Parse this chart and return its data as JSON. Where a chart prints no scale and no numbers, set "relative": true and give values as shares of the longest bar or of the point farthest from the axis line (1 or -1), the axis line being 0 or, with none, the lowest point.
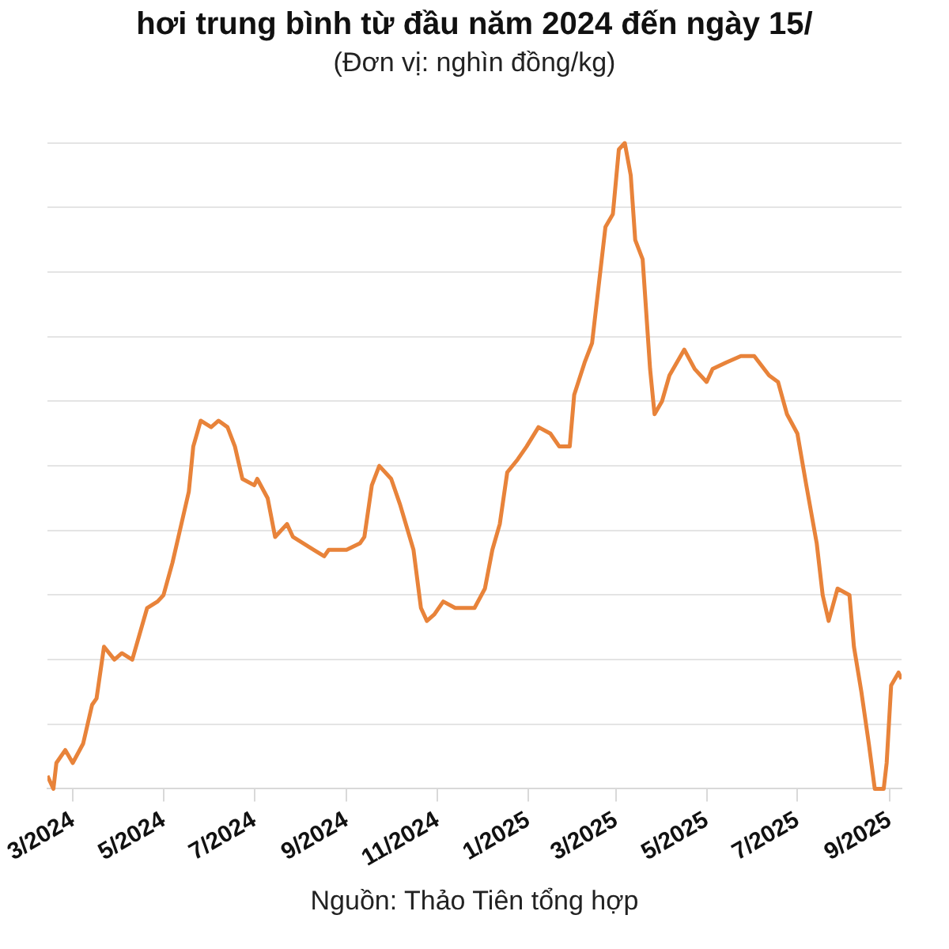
{
  "chart_data": {
    "type": "line",
    "title": "hơi trung bình từ đầu năm 2024 đến ngày 15/",
    "subtitle": "(Đơn vị: nghìn đồng/kg)",
    "annotations": [
      "Nguồn: Thảo Tiên tổng hợp"
    ],
    "relative": true,
    "grid": "y",
    "marker": "none",
    "xlim": [
      "2024-02-13",
      "2025-09-09"
    ],
    "xticks": [
      {
        "value": "2024-03",
        "label": "3/2024"
      },
      {
        "value": "2024-05",
        "label": "5/2024"
      },
      {
        "value": "2024-07",
        "label": "7/2024"
      },
      {
        "value": "2024-09",
        "label": "9/2024"
      },
      {
        "value": "2024-11",
        "label": "11/2024"
      },
      {
        "value": "2025-01",
        "label": "1/2025"
      },
      {
        "value": "2025-03",
        "label": "3/2025"
      },
      {
        "value": "2025-05",
        "label": "5/2025"
      },
      {
        "value": "2025-07",
        "label": "7/2025"
      },
      {
        "value": "2025-09",
        "label": "9/2025"
      }
    ],
    "x": [
      "2024-02-13",
      "2024-02-17",
      "2024-02-19",
      "2024-02-25",
      "2024-03-01",
      "2024-03-08",
      "2024-03-14",
      "2024-03-17",
      "2024-03-22",
      "2024-03-29",
      "2024-04-03",
      "2024-04-10",
      "2024-04-15",
      "2024-04-20",
      "2024-04-27",
      "2024-05-01",
      "2024-05-07",
      "2024-05-14",
      "2024-05-18",
      "2024-05-21",
      "2024-05-26",
      "2024-06-02",
      "2024-06-07",
      "2024-06-13",
      "2024-06-18",
      "2024-06-23",
      "2024-07-01",
      "2024-07-03",
      "2024-07-10",
      "2024-07-15",
      "2024-07-23",
      "2024-07-27",
      "2024-08-10",
      "2024-08-17",
      "2024-08-20",
      "2024-09-01",
      "2024-09-10",
      "2024-09-13",
      "2024-09-18",
      "2024-09-23",
      "2024-10-01",
      "2024-10-07",
      "2024-10-16",
      "2024-10-21",
      "2024-10-25",
      "2024-10-30",
      "2024-11-05",
      "2024-11-13",
      "2024-11-19",
      "2024-11-26",
      "2024-12-03",
      "2024-12-08",
      "2024-12-13",
      "2024-12-18",
      "2024-12-25",
      "2024-12-31",
      "2025-01-08",
      "2025-01-16",
      "2025-01-22",
      "2025-01-29",
      "2025-02-01",
      "2025-02-08",
      "2025-02-13",
      "2025-02-22",
      "2025-02-27",
      "2025-03-03",
      "2025-03-07",
      "2025-03-11",
      "2025-03-14",
      "2025-03-19",
      "2025-03-24",
      "2025-03-27",
      "2025-04-01",
      "2025-04-06",
      "2025-04-16",
      "2025-04-23",
      "2025-05-01",
      "2025-05-05",
      "2025-05-14",
      "2025-05-24",
      "2025-06-02",
      "2025-06-12",
      "2025-06-18",
      "2025-06-24",
      "2025-07-01",
      "2025-07-07",
      "2025-07-14",
      "2025-07-18",
      "2025-07-22",
      "2025-07-28",
      "2025-08-05",
      "2025-08-08",
      "2025-08-13",
      "2025-08-18",
      "2025-08-22",
      "2025-08-28",
      "2025-08-30",
      "2025-09-02",
      "2025-09-07",
      "2025-09-09"
    ],
    "series": [
      {
        "color": "#e8833a",
        "values": [
          0.02,
          0.0,
          0.04,
          0.06,
          0.04,
          0.07,
          0.13,
          0.14,
          0.22,
          0.2,
          0.21,
          0.2,
          0.24,
          0.28,
          0.29,
          0.3,
          0.35,
          0.42,
          0.46,
          0.53,
          0.57,
          0.56,
          0.57,
          0.56,
          0.53,
          0.48,
          0.47,
          0.48,
          0.45,
          0.39,
          0.41,
          0.39,
          0.37,
          0.36,
          0.37,
          0.37,
          0.38,
          0.39,
          0.47,
          0.5,
          0.48,
          0.44,
          0.37,
          0.28,
          0.26,
          0.27,
          0.29,
          0.28,
          0.28,
          0.28,
          0.31,
          0.37,
          0.41,
          0.49,
          0.51,
          0.53,
          0.56,
          0.55,
          0.53,
          0.53,
          0.61,
          0.66,
          0.69,
          0.87,
          0.89,
          0.99,
          1,
          0.95,
          0.85,
          0.82,
          0.65,
          0.58,
          0.6,
          0.64,
          0.68,
          0.65,
          0.63,
          0.65,
          0.66,
          0.67,
          0.67,
          0.64,
          0.63,
          0.58,
          0.55,
          0.47,
          0.38,
          0.3,
          0.26,
          0.31,
          0.3,
          0.22,
          0.15,
          0.07,
          0,
          0,
          0.04,
          0.16,
          0.18,
          0.17
        ]
      }
    ]
  }
}
